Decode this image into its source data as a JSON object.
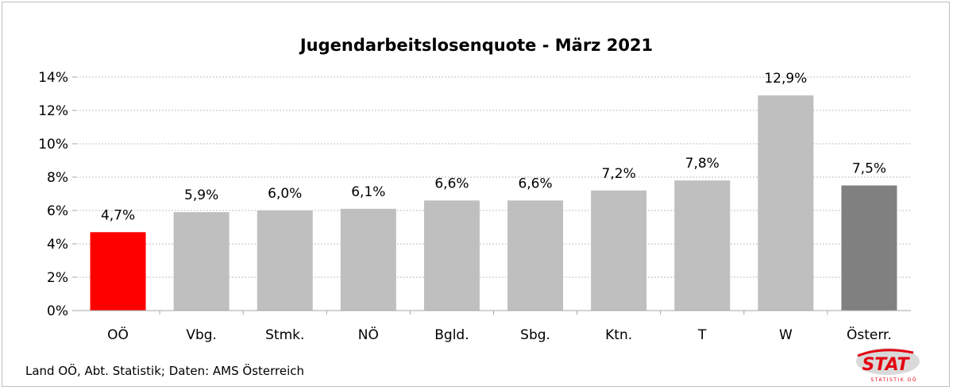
{
  "chart_data": {
    "type": "bar",
    "title": "Jugendarbeitslosenquote - März 2021",
    "categories": [
      "OÖ",
      "Vbg.",
      "Stmk.",
      "NÖ",
      "Bgld.",
      "Sbg.",
      "Ktn.",
      "T",
      "W",
      "Österr."
    ],
    "values": [
      4.7,
      5.9,
      6.0,
      6.1,
      6.6,
      6.6,
      7.2,
      7.8,
      12.9,
      7.5
    ],
    "data_labels": [
      "4,7%",
      "5,9%",
      "6,0%",
      "6,1%",
      "6,6%",
      "6,6%",
      "7,2%",
      "7,8%",
      "12,9%",
      "7,5%"
    ],
    "bar_colors": [
      "#ff0000",
      "#bfbfbf",
      "#bfbfbf",
      "#bfbfbf",
      "#bfbfbf",
      "#bfbfbf",
      "#bfbfbf",
      "#bfbfbf",
      "#bfbfbf",
      "#808080"
    ],
    "ylim": [
      0,
      14
    ],
    "y_ticks": [
      0,
      2,
      4,
      6,
      8,
      10,
      12,
      14
    ],
    "y_tick_labels": [
      "0%",
      "2%",
      "4%",
      "6%",
      "8%",
      "10%",
      "12%",
      "14%"
    ],
    "xlabel": "",
    "ylabel": "",
    "grid": true,
    "legend": "none"
  },
  "footer": {
    "source": "Land OÖ, Abt. Statistik; Daten: AMS Österreich"
  },
  "logo": {
    "text": "STAT",
    "subtext": "STATISTIK OÖ"
  }
}
